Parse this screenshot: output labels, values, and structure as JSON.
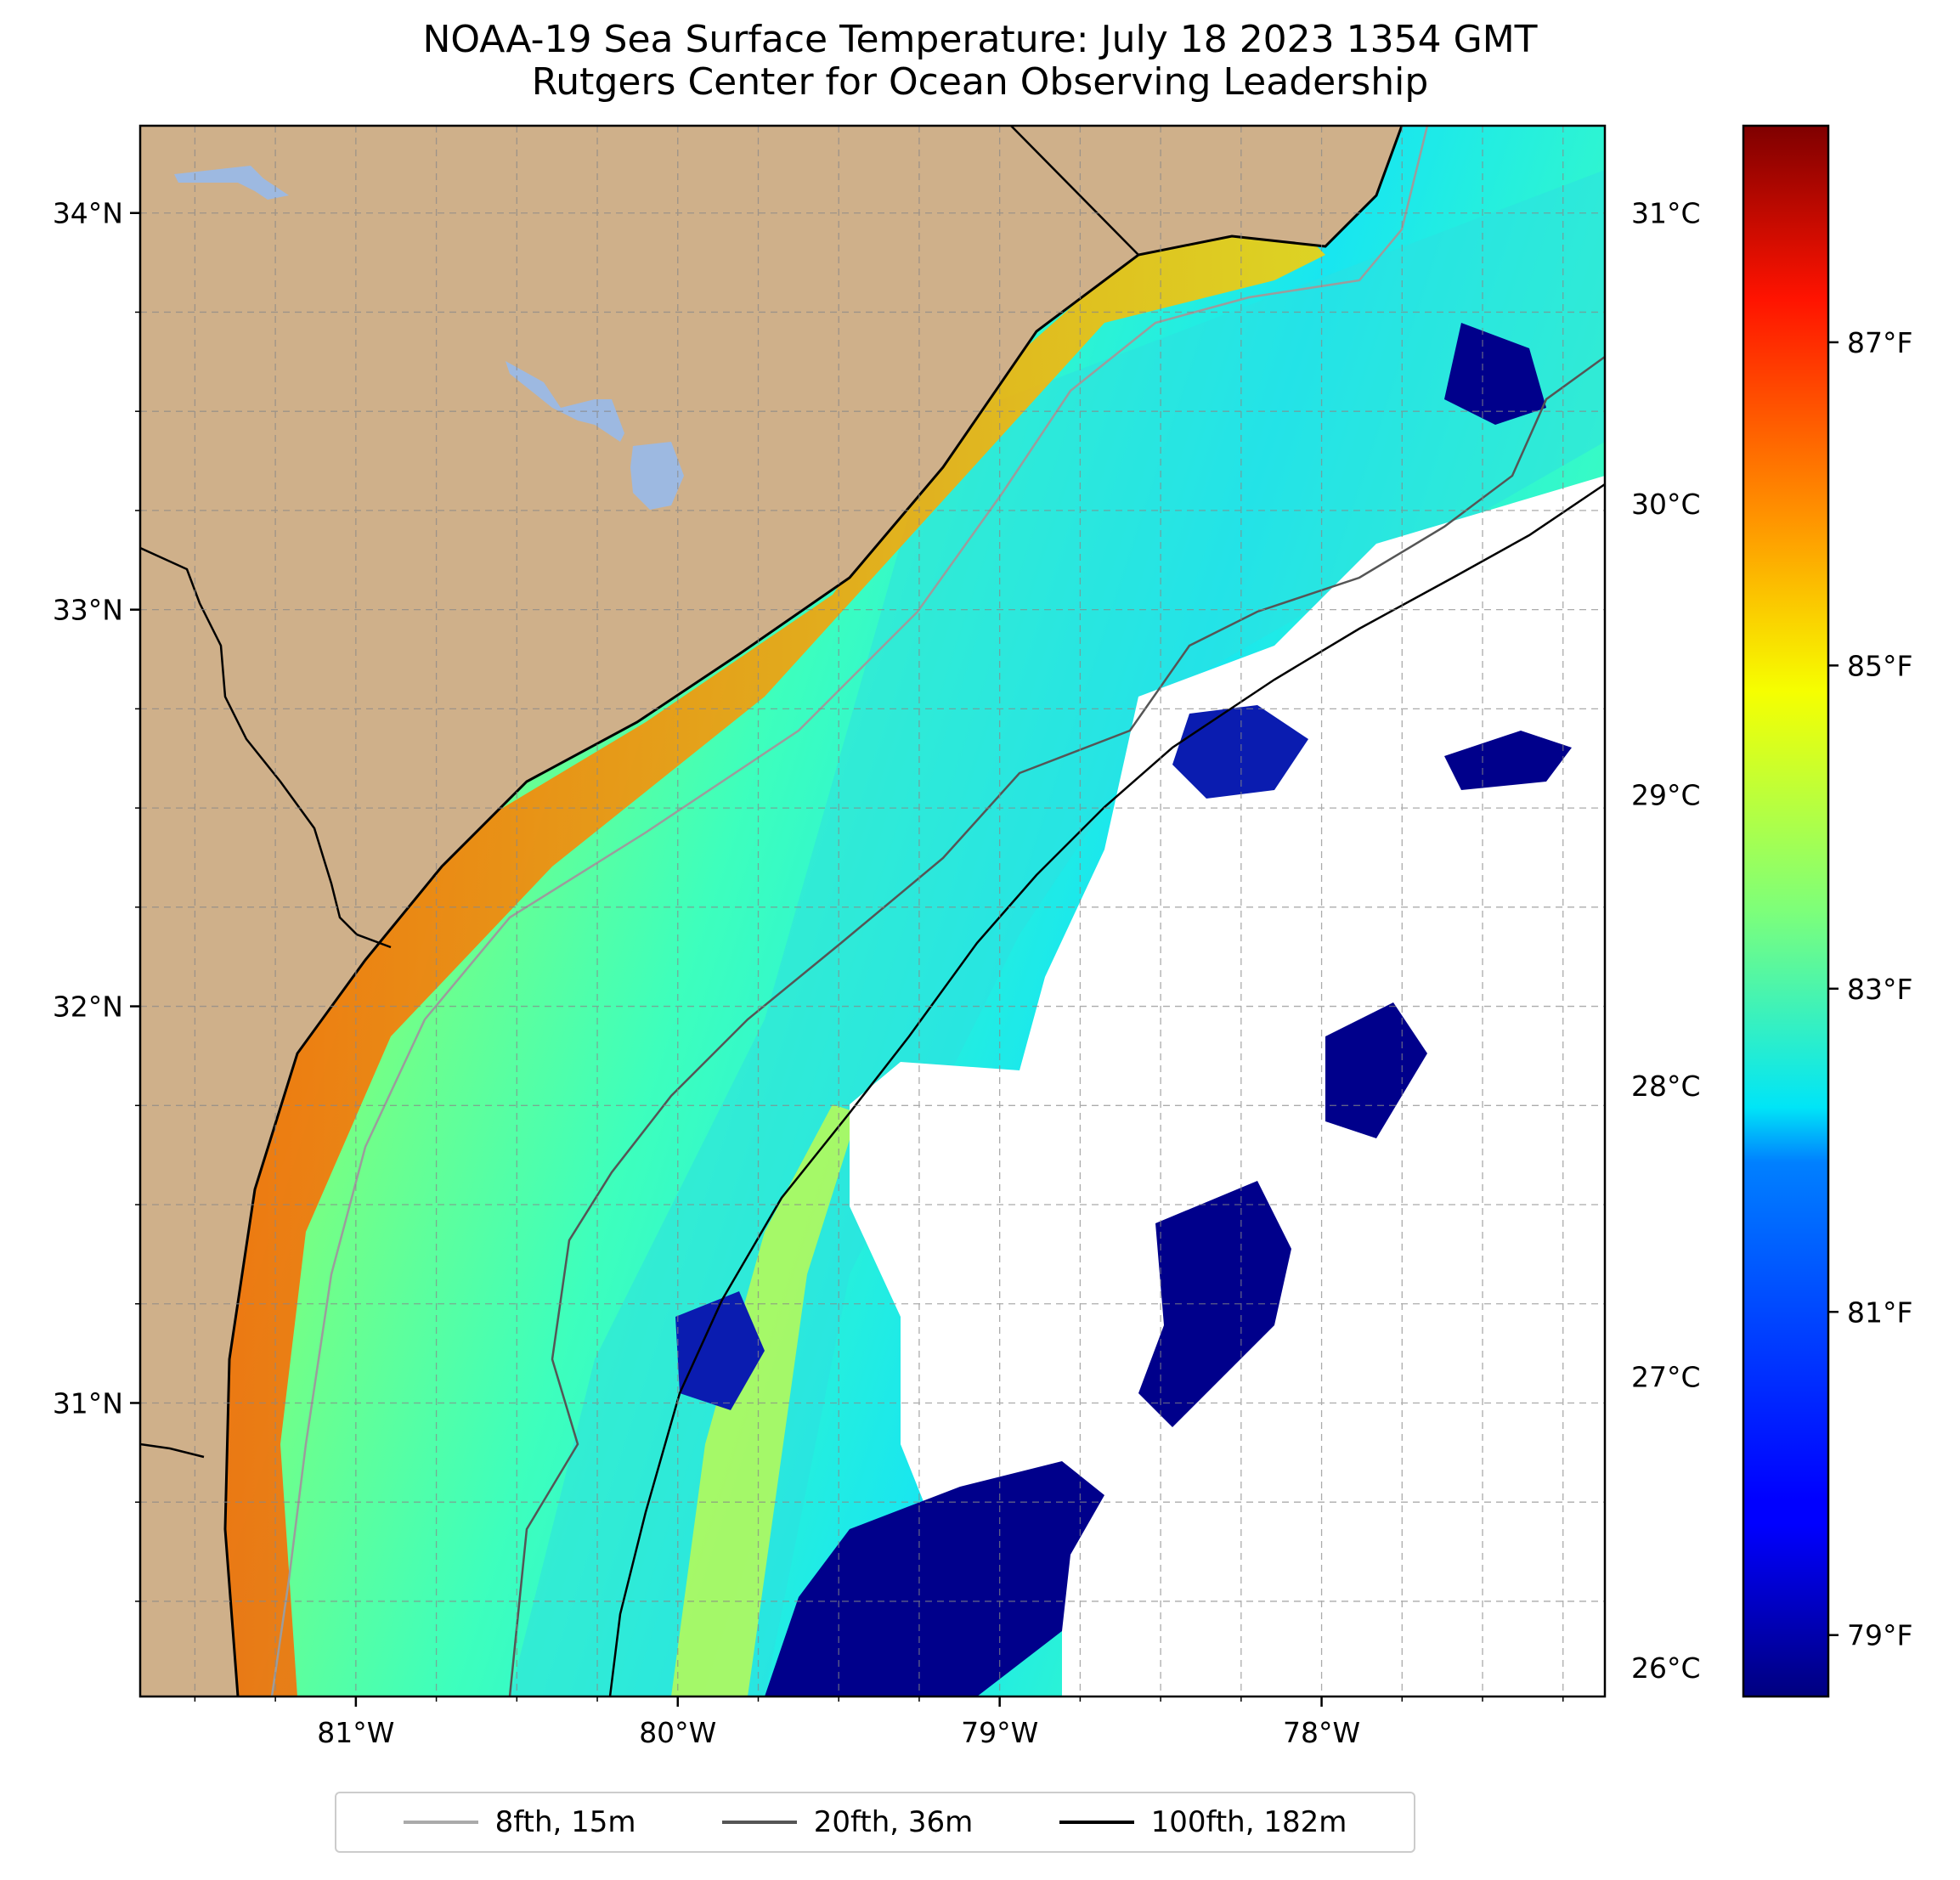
{
  "title": {
    "line1": "NOAA-19 Sea Surface Temperature: July 18 2023 1354 GMT",
    "line2": "Rutgers Center for Ocean Observing Leadership"
  },
  "map": {
    "lon_ticks": [
      "81°W",
      "80°W",
      "79°W",
      "78°W"
    ],
    "lat_ticks": [
      "34°N",
      "33°N",
      "32°N",
      "31°N"
    ],
    "lon_range": [
      -81.67,
      -77.12
    ],
    "lat_range": [
      30.26,
      34.22
    ],
    "land_color": "#cfb08a",
    "lake_color": "#9db9e1",
    "cloud_mask_color": "#ffffff",
    "gridlines": true
  },
  "colorbar": {
    "colormap": "jet",
    "celsius_ticks": [
      "31°C",
      "30°C",
      "29°C",
      "28°C",
      "27°C",
      "26°C"
    ],
    "fahrenheit_ticks": [
      "87°F",
      "85°F",
      "83°F",
      "81°F",
      "79°F"
    ],
    "range_c": [
      25.9,
      31.3
    ]
  },
  "legend": {
    "items": [
      {
        "label": "8fth, 15m",
        "color": "#aaaaaa"
      },
      {
        "label": "20fth, 36m",
        "color": "#555555"
      },
      {
        "label": "100fth, 182m",
        "color": "#000000"
      }
    ]
  }
}
